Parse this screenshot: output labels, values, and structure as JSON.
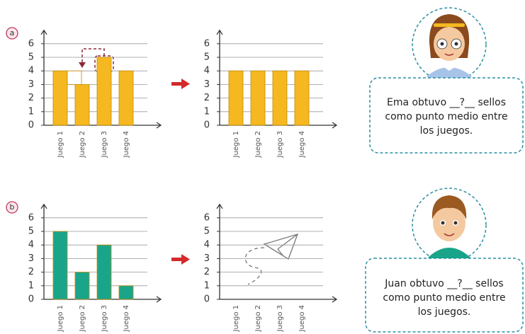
{
  "chart_data": [
    {
      "type": "bar",
      "label": "a",
      "categories": [
        "Juego 1",
        "Juego 2",
        "Juego 3",
        "Juego 4"
      ],
      "values": [
        4,
        3,
        5,
        4
      ],
      "color": "#f5b820",
      "ylim": [
        0,
        6
      ],
      "yticks": [
        0,
        1,
        2,
        3,
        4,
        5,
        6
      ],
      "grid": true
    },
    {
      "type": "bar",
      "categories": [
        "Juego 1",
        "Juego 2",
        "Juego 3",
        "Juego 4"
      ],
      "values": [
        4,
        4,
        4,
        4
      ],
      "color": "#f5b820",
      "ylim": [
        0,
        6
      ],
      "yticks": [
        0,
        1,
        2,
        3,
        4,
        5,
        6
      ],
      "grid": true
    },
    {
      "type": "bar",
      "label": "b",
      "categories": [
        "Juego 1",
        "Juego 2",
        "Juego 3",
        "Juego 4"
      ],
      "values": [
        5,
        2,
        4,
        1
      ],
      "color": "#1aa58a",
      "ylim": [
        0,
        6
      ],
      "yticks": [
        0,
        1,
        2,
        3,
        4,
        5,
        6
      ],
      "grid": true
    },
    {
      "type": "bar",
      "categories": [
        "Juego 1",
        "Juego 2",
        "Juego 3",
        "Juego 4"
      ],
      "values": [
        null,
        null,
        null,
        null
      ],
      "color": "#1aa58a",
      "ylim": [
        0,
        6
      ],
      "yticks": [
        0,
        1,
        2,
        3,
        4,
        5,
        6
      ],
      "grid": true
    }
  ],
  "bubbles": [
    [
      "Ema obtuvo __?__ sellos",
      "como punto medio entre",
      "los juegos."
    ],
    [
      "Juan obtuvo __?__ sellos",
      "como punto medio entre",
      "los juegos."
    ]
  ]
}
